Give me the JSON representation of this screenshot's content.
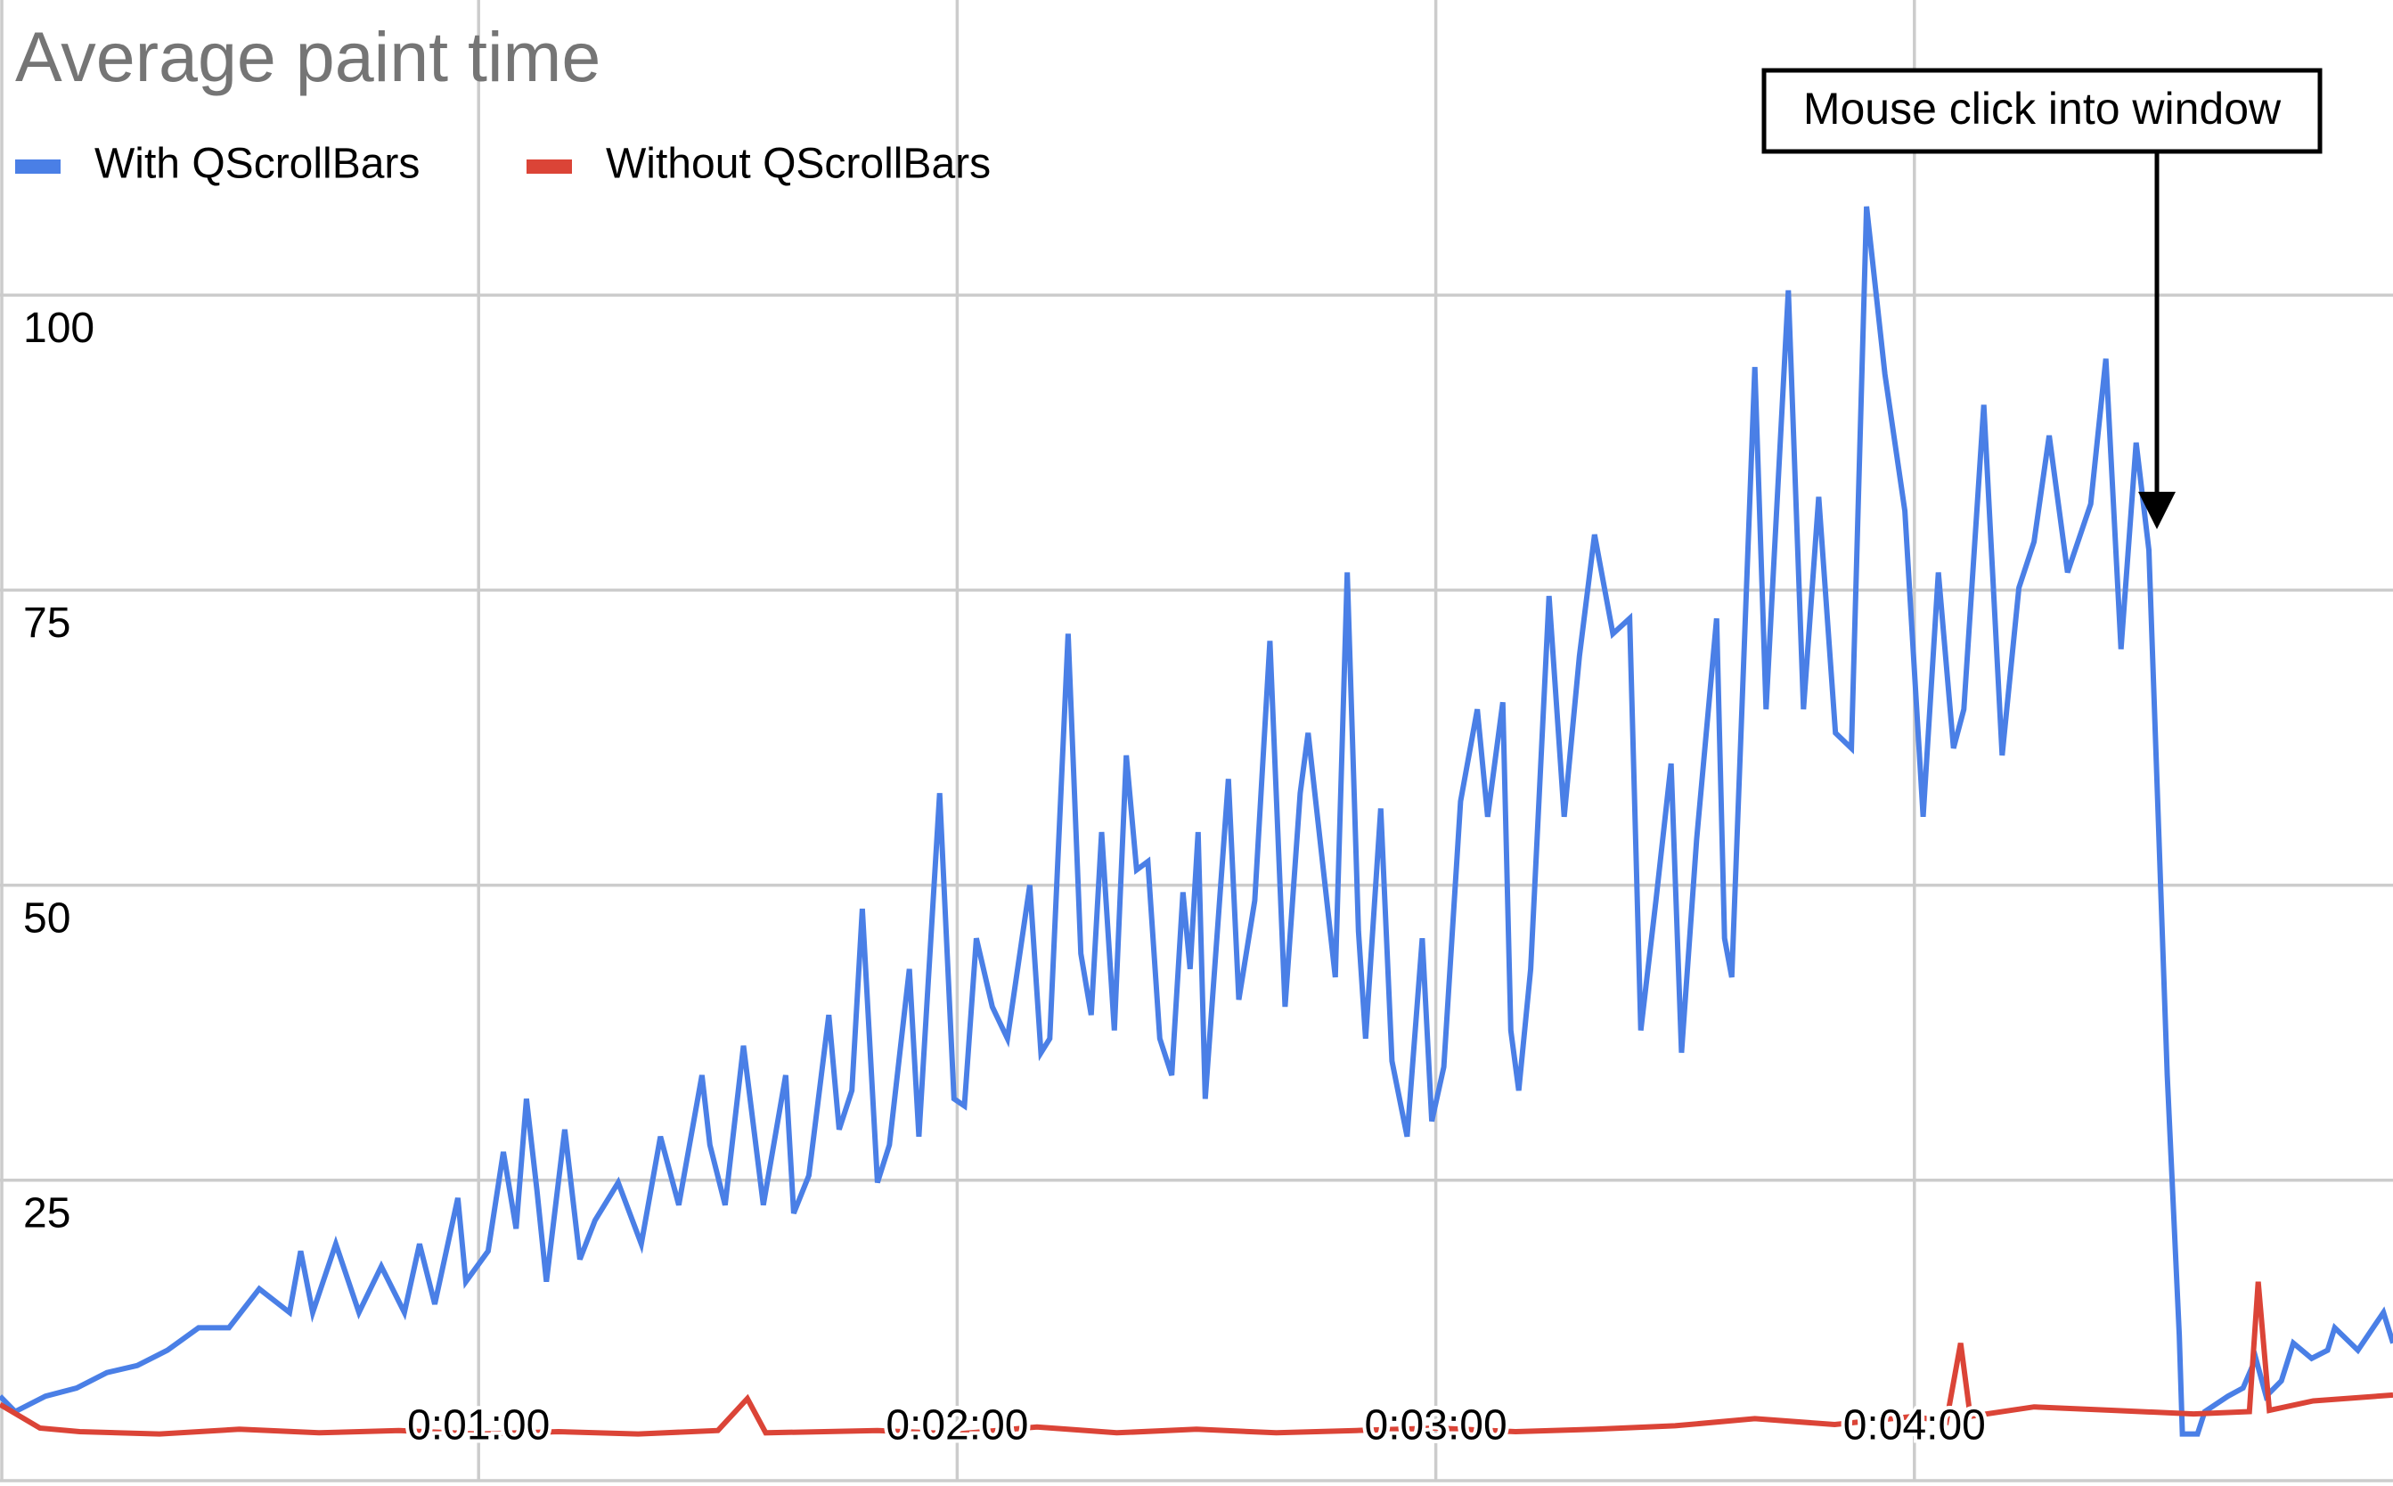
{
  "chart_data": {
    "type": "line",
    "title": "Average paint time",
    "annotation": "Mouse click into window",
    "xlim": [
      0,
      300
    ],
    "ylim": [
      0,
      125
    ],
    "yticks": [
      25,
      50,
      75,
      100
    ],
    "xticks": [
      {
        "value": 60,
        "label": "0:01:00"
      },
      {
        "value": 120,
        "label": "0:02:00"
      },
      {
        "value": 180,
        "label": "0:03:00"
      },
      {
        "value": 240,
        "label": "0:04:00"
      }
    ],
    "grid": true,
    "legend": "top-left",
    "series": [
      {
        "name": "With QScrollBars",
        "color": "#4a7fe6",
        "x": [
          0,
          1.9,
          5.7,
          9.6,
          13.4,
          17.2,
          21,
          24.9,
          28.7,
          32.5,
          36.3,
          37.7,
          39.2,
          42.1,
          45,
          47.8,
          50.7,
          52.6,
          54.5,
          57.4,
          58.4,
          61.2,
          63.1,
          64.7,
          66,
          67.3,
          68.5,
          70.8,
          72.7,
          74.6,
          77.5,
          80.4,
          82.8,
          85.1,
          88,
          89,
          90.9,
          93.2,
          95.7,
          98.5,
          99.5,
          101.4,
          103.9,
          105.2,
          106.8,
          108.1,
          110,
          111.5,
          114,
          115.2,
          117.8,
          119.6,
          120.9,
          122.4,
          124.4,
          126.3,
          129.1,
          130.5,
          131.6,
          133.9,
          135.5,
          136.8,
          138.1,
          139.7,
          141.2,
          142.5,
          143.9,
          145.4,
          146.9,
          148.3,
          149.2,
          150.2,
          151.1,
          154,
          155.3,
          157.3,
          159.2,
          161.1,
          163,
          164,
          167.4,
          168.9,
          170.3,
          171.2,
          173.1,
          174.5,
          176.4,
          178.3,
          179.5,
          181,
          183.1,
          185.2,
          186.5,
          188.4,
          189.4,
          190.4,
          191.9,
          194.2,
          196.1,
          198,
          199.9,
          202.2,
          204.3,
          205.7,
          207.6,
          209.5,
          210.8,
          212.7,
          215.2,
          216.2,
          217.1,
          220,
          221.4,
          224.2,
          226.1,
          228,
          230.1,
          232.1,
          234,
          236.3,
          238.8,
          241.1,
          243,
          244.9,
          246.2,
          248.7,
          251,
          253.1,
          255,
          256.9,
          259.2,
          262.1,
          264,
          265.9,
          267.8,
          269.4,
          271.7,
          273.2,
          273.6,
          275.5,
          276.4,
          279.3,
          281.2,
          282.8,
          284.1,
          286,
          287.5,
          289.8,
          291.8,
          292.7,
          295.6,
          297.5,
          298.8,
          300
        ],
        "values": [
          6.7,
          5.4,
          6.7,
          7.4,
          8.7,
          9.3,
          10.6,
          12.5,
          12.5,
          15.8,
          13.8,
          19,
          13.8,
          19.6,
          13.8,
          17.7,
          13.8,
          19.6,
          14.5,
          23.5,
          16.4,
          19,
          27.4,
          20.9,
          31.9,
          24.2,
          16.4,
          29.3,
          18.3,
          21.6,
          24.8,
          19.6,
          28.7,
          22.9,
          33.9,
          28,
          22.9,
          36.4,
          22.9,
          33.9,
          22.2,
          25.4,
          39,
          29.3,
          32.6,
          48,
          24.8,
          28,
          42.9,
          28.7,
          57.8,
          31.9,
          31.3,
          45.5,
          39.7,
          37,
          50,
          35.8,
          37,
          71.3,
          44.2,
          39,
          54.5,
          37.7,
          61,
          51.3,
          52,
          37,
          33.9,
          49.4,
          42.9,
          54.5,
          31.9,
          59,
          40.3,
          48.7,
          70.7,
          39.7,
          57.8,
          62.9,
          42.2,
          76.5,
          46.1,
          37,
          56.5,
          35.1,
          28.7,
          45.5,
          30,
          34.6,
          57.1,
          64.9,
          55.8,
          65.5,
          37.7,
          32.6,
          42.9,
          74.5,
          55.8,
          69.4,
          79.7,
          71.3,
          72.6,
          37.7,
          48.7,
          60.3,
          35.8,
          53.9,
          72.6,
          45.5,
          42.2,
          93.9,
          64.9,
          100.4,
          64.9,
          82.9,
          62.9,
          61.6,
          107.5,
          93.3,
          81.7,
          55.8,
          76.5,
          61.6,
          64.9,
          90.7,
          61,
          75.2,
          79.1,
          88.1,
          76.5,
          82.3,
          94.6,
          70,
          87.5,
          78.4,
          33.9,
          11.9,
          3.5,
          3.5,
          5.4,
          6.7,
          7.4,
          9.9,
          6.7,
          8,
          11.2,
          9.9,
          10.6,
          12.5,
          10.6,
          12.5,
          13.8,
          11.2
        ]
      },
      {
        "name": "Without QScrollBars",
        "color": "#db4437",
        "x": [
          0,
          5,
          10,
          20,
          30,
          40,
          50,
          60,
          70,
          80,
          90,
          93.7,
          96,
          110,
          120,
          130,
          140,
          150,
          160,
          170,
          180,
          190,
          200,
          210,
          220,
          230,
          240,
          244,
          245.8,
          247,
          255,
          265,
          275,
          282,
          283.1,
          284.5,
          290,
          300
        ],
        "values": [
          6,
          4,
          3.7,
          3.5,
          3.9,
          3.6,
          3.8,
          3.5,
          3.7,
          3.5,
          3.8,
          6.5,
          3.6,
          3.8,
          3.5,
          4.1,
          3.6,
          3.9,
          3.6,
          3.8,
          4,
          3.7,
          3.9,
          4.2,
          4.8,
          4.3,
          5,
          4.5,
          11.2,
          5,
          5.8,
          5.5,
          5.2,
          5.4,
          16.4,
          5.5,
          6.3,
          6.8
        ]
      }
    ]
  }
}
